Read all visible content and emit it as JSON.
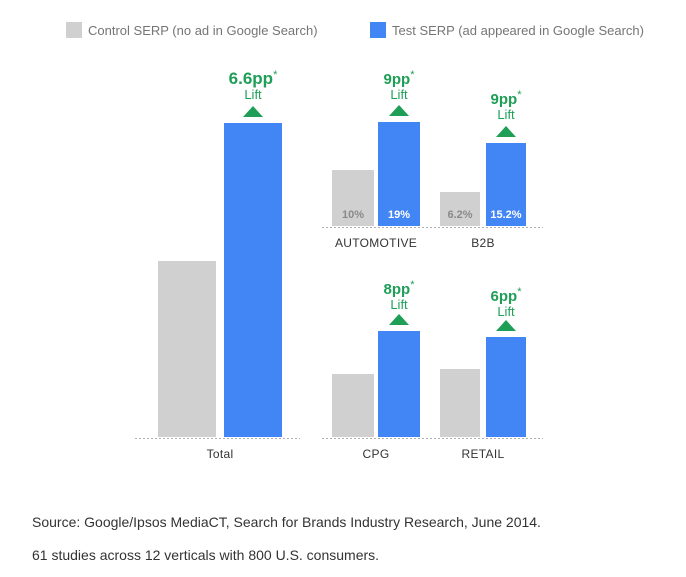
{
  "colors": {
    "control": "#d0d0d0",
    "test": "#4285f4",
    "lift": "#1e9e57",
    "baseline": "#b0b0b0"
  },
  "chart_data": [
    {
      "type": "bar",
      "categories": [
        "Total"
      ],
      "series": [
        {
          "name": "Control SERP (no ad in Google Search)",
          "values": [
            null
          ]
        },
        {
          "name": "Test SERP (ad appeared in Google Search)",
          "values": [
            null
          ]
        }
      ],
      "lift": {
        "value": "6.6pp",
        "star": "*",
        "label": "Lift"
      }
    },
    {
      "type": "bar",
      "categories": [
        "AUTOMOTIVE"
      ],
      "series": [
        {
          "name": "Control SERP (no ad in Google Search)",
          "values": [
            10
          ]
        },
        {
          "name": "Test SERP (ad appeared in Google Search)",
          "values": [
            19
          ]
        }
      ],
      "value_labels": [
        "10%",
        "19%"
      ],
      "lift": {
        "value": "9pp",
        "star": "*",
        "label": "Lift"
      }
    },
    {
      "type": "bar",
      "categories": [
        "B2B"
      ],
      "series": [
        {
          "name": "Control SERP (no ad in Google Search)",
          "values": [
            6.2
          ]
        },
        {
          "name": "Test SERP (ad appeared in Google Search)",
          "values": [
            15.2
          ]
        }
      ],
      "value_labels": [
        "6.2%",
        "15.2%"
      ],
      "lift": {
        "value": "9pp",
        "star": "*",
        "label": "Lift"
      }
    },
    {
      "type": "bar",
      "categories": [
        "CPG"
      ],
      "series": [
        {
          "name": "Control SERP (no ad in Google Search)",
          "values": [
            null
          ]
        },
        {
          "name": "Test SERP (ad appeared in Google Search)",
          "values": [
            null
          ]
        }
      ],
      "lift": {
        "value": "8pp",
        "star": "*",
        "label": "Lift"
      }
    },
    {
      "type": "bar",
      "categories": [
        "RETAIL"
      ],
      "series": [
        {
          "name": "Control SERP (no ad in Google Search)",
          "values": [
            null
          ]
        },
        {
          "name": "Test SERP (ad appeared in Google Search)",
          "values": [
            null
          ]
        }
      ],
      "lift": {
        "value": "6pp",
        "star": "*",
        "label": "Lift"
      }
    }
  ],
  "legend": {
    "control_label": "Control SERP (no ad in Google Search)",
    "test_label": "Test SERP (ad appeared in Google Search)"
  },
  "footnotes": {
    "source": "Source: Google/Ipsos MediaCT, Search for Brands Industry Research, June 2014.",
    "studies": "61 studies across 12 verticals with 800 U.S. consumers."
  }
}
